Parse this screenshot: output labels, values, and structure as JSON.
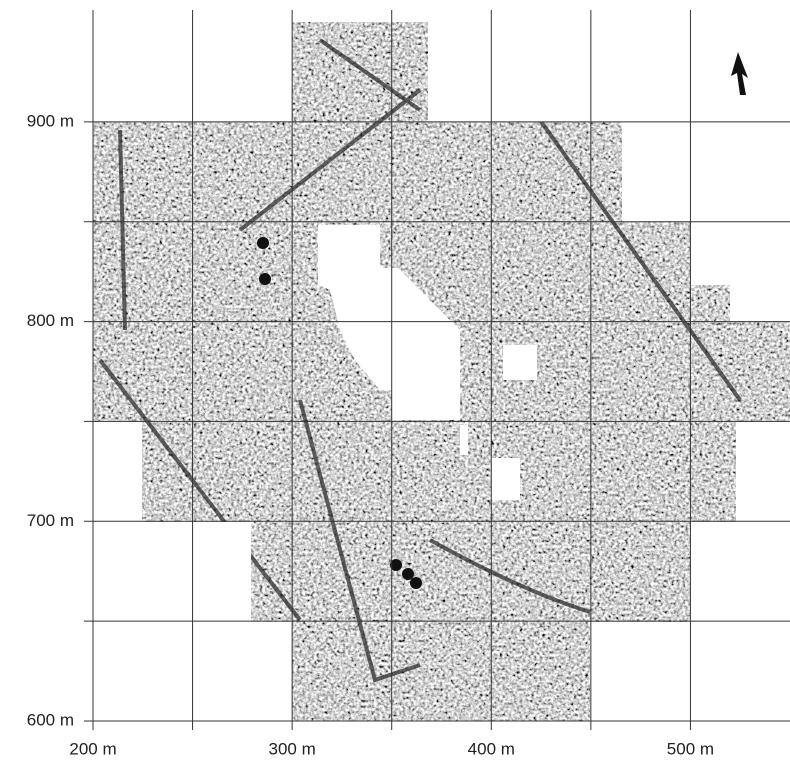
{
  "axes": {
    "xlim": [
      200,
      550
    ],
    "ylim": [
      600,
      950
    ],
    "xticks": [
      {
        "value": 200,
        "label": "200 m"
      },
      {
        "value": 300,
        "label": "300 m"
      },
      {
        "value": 400,
        "label": "400 m"
      },
      {
        "value": 500,
        "label": "500 m"
      }
    ],
    "yticks": [
      {
        "value": 600,
        "label": "600 m"
      },
      {
        "value": 700,
        "label": "700 m"
      },
      {
        "value": 800,
        "label": "800 m"
      },
      {
        "value": 900,
        "label": "900 m"
      }
    ],
    "xgrid": [
      200,
      250,
      300,
      350,
      400,
      450,
      500
    ],
    "ygrid": [
      600,
      650,
      700,
      750,
      800,
      850,
      900
    ]
  }
}
